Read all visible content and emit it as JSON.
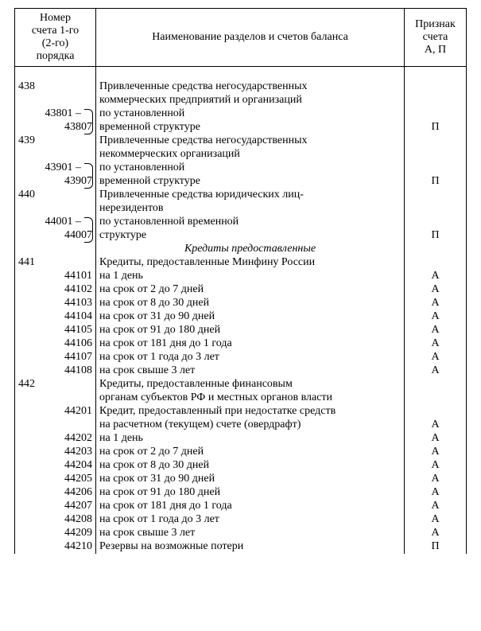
{
  "header": {
    "col1": "Номер\nсчета 1-го\n(2-го)\nпорядка",
    "col2": "Наименование разделов и счетов баланса",
    "col3": "Признак\nсчета\nА, П"
  },
  "groups": [
    {
      "l1": "438",
      "title_lines": [
        "Привлеченные средства негосударственных",
        "коммерческих предприятий и организаций"
      ],
      "range_from": "43801",
      "range_to": "43807",
      "range_lines": [
        "по установленной",
        "временной структуре"
      ],
      "sign": "П"
    },
    {
      "l1": "439",
      "title_lines": [
        "Привлеченные средства негосударственных",
        "некоммерческих организаций"
      ],
      "range_from": "43901",
      "range_to": "43907",
      "range_lines": [
        "по установленной",
        "временной структуре"
      ],
      "sign": "П"
    },
    {
      "l1": "440",
      "title_lines": [
        "Привлеченные средства юридических лиц-",
        "нерезидентов"
      ],
      "range_from": "44001",
      "range_to": "44007",
      "range_lines": [
        "по установленной временной",
        "структуре"
      ],
      "sign": "П"
    }
  ],
  "section_title": "Кредиты предоставленные",
  "acc441": {
    "l1": "441",
    "title": "Кредиты, предоставленные Минфину России",
    "rows": [
      {
        "n": "44101",
        "t": "на 1 день",
        "s": "А"
      },
      {
        "n": "44102",
        "t": "на срок от 2 до 7 дней",
        "s": "А"
      },
      {
        "n": "44103",
        "t": "на срок от 8 до 30 дней",
        "s": "А"
      },
      {
        "n": "44104",
        "t": "на срок от 31 до 90 дней",
        "s": "А"
      },
      {
        "n": "44105",
        "t": "на срок от 91 до 180 дней",
        "s": "А"
      },
      {
        "n": "44106",
        "t": "на срок от 181 дня до 1 года",
        "s": "А"
      },
      {
        "n": "44107",
        "t": "на срок от 1 года до 3 лет",
        "s": "А"
      },
      {
        "n": "44108",
        "t": "на срок свыше 3 лет",
        "s": "А"
      }
    ]
  },
  "acc442": {
    "l1": "442",
    "title_lines": [
      "Кредиты, предоставленные финансовым",
      "органам субъектов РФ и местных органов власти"
    ],
    "first_row": {
      "n": "44201",
      "lines": [
        "Кредит, предоставленный при недостатке средств",
        "на расчетном (текущем) счете (овердрафт)"
      ],
      "s": "А"
    },
    "rows": [
      {
        "n": "44202",
        "t": "на 1 день",
        "s": "А"
      },
      {
        "n": "44203",
        "t": "на срок от 2 до 7 дней",
        "s": "А"
      },
      {
        "n": "44204",
        "t": "на срок от 8 до 30 дней",
        "s": "А"
      },
      {
        "n": "44205",
        "t": "на срок от 31 до 90 дней",
        "s": "А"
      },
      {
        "n": "44206",
        "t": "на срок от 91 до 180 дней",
        "s": "А"
      },
      {
        "n": "44207",
        "t": "на срок от 181 дня до 1 года",
        "s": "А"
      },
      {
        "n": "44208",
        "t": "на срок от 1 года до 3 лет",
        "s": "А"
      },
      {
        "n": "44209",
        "t": "на срок свыше 3 лет",
        "s": "А"
      },
      {
        "n": "44210",
        "t": "Резервы на возможные потери",
        "s": "П"
      }
    ]
  }
}
